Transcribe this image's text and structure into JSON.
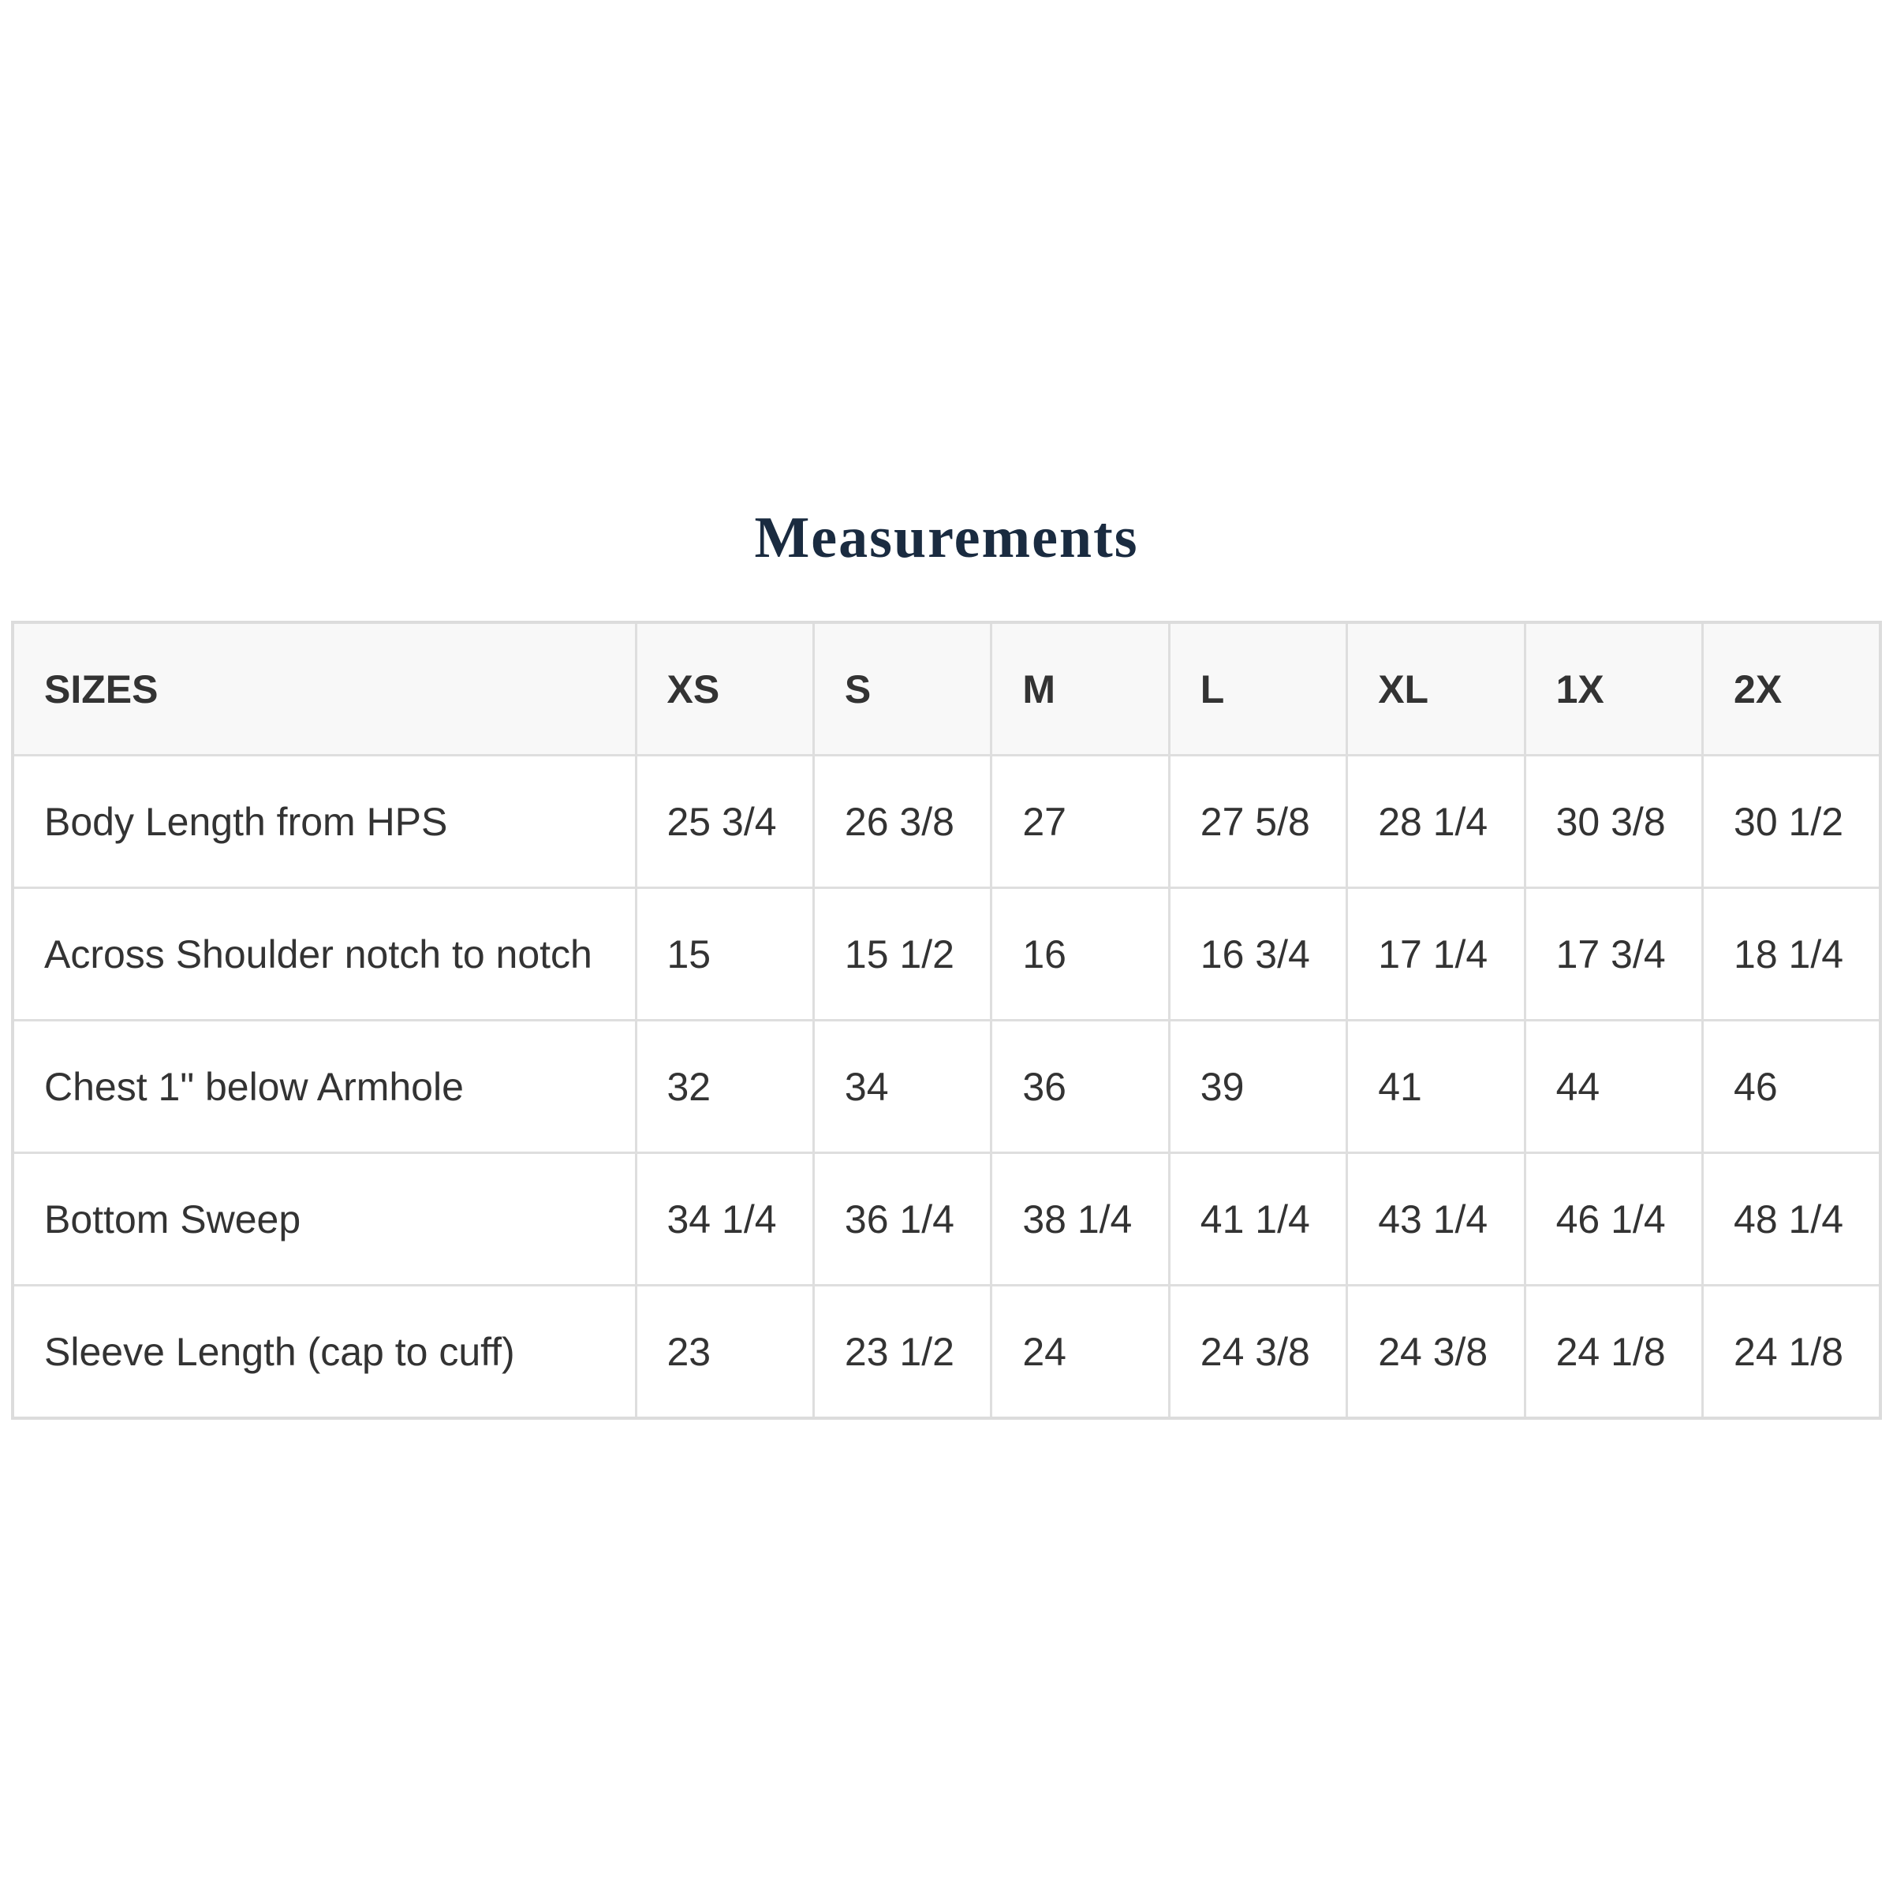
{
  "title": "Measurements",
  "table": {
    "headers": [
      "SIZES",
      "XS",
      "S",
      "M",
      "L",
      "XL",
      "1X",
      "2X"
    ],
    "rows": [
      [
        "Body Length from HPS",
        "25 3/4",
        "26 3/8",
        "27",
        "27 5/8",
        "28 1/4",
        "30 3/8",
        "30 1/2"
      ],
      [
        "Across Shoulder notch to notch",
        "15",
        "15 1/2",
        "16",
        "16 3/4",
        "17 1/4",
        "17 3/4",
        "18 1/4"
      ],
      [
        "Chest 1\" below Armhole",
        "32",
        "34",
        "36",
        "39",
        "41",
        "44",
        "46"
      ],
      [
        "Bottom Sweep",
        "34 1/4",
        "36 1/4",
        "38 1/4",
        "41 1/4",
        "43 1/4",
        "46 1/4",
        "48 1/4"
      ],
      [
        "Sleeve Length (cap to cuff)",
        "23",
        "23 1/2",
        "24",
        "24 3/8",
        "24 3/8",
        "24 1/8",
        "24 1/8"
      ]
    ]
  },
  "colors": {
    "title": "#1a2b40",
    "text": "#333333",
    "header_bg": "#f8f8f8",
    "border": "#dedede"
  }
}
